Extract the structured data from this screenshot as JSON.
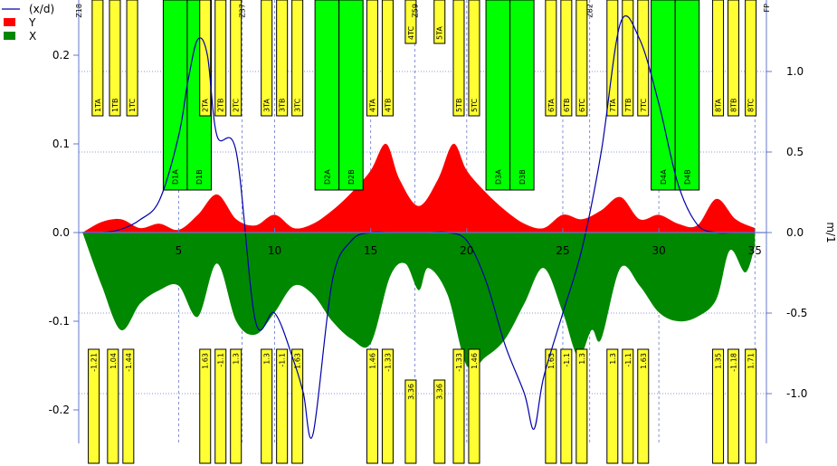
{
  "chart_data": {
    "type": "area",
    "legend": {
      "position": "top-left",
      "entries": [
        {
          "label": "(x/d)",
          "color": "#0000aa",
          "symbol": "line"
        },
        {
          "label": "Y",
          "color": "#ff0000",
          "symbol": "box"
        },
        {
          "label": "X",
          "color": "#008800",
          "symbol": "box"
        }
      ]
    },
    "x_axis": {
      "range": [
        -0.2,
        35.6
      ],
      "ticks": [
        5,
        10,
        15,
        20,
        25,
        30,
        35
      ]
    },
    "y_left": {
      "range": [
        -0.25,
        0.26
      ],
      "ticks": [
        0.2,
        0.1,
        0.0,
        -0.1,
        -0.2
      ],
      "tick_labels": [
        "0.2",
        "0.1",
        "0.0",
        "-0.1",
        "-0.2"
      ]
    },
    "y_right": {
      "label": "m/1",
      "range": [
        -1.29,
        1.38
      ],
      "ticks": [
        1.0,
        0.5,
        0.0,
        -0.5,
        -1.0
      ],
      "tick_labels": [
        "1.0",
        "0.5",
        "0.0",
        "-0.5",
        "-1.0"
      ]
    },
    "grid": "dashed",
    "series": [
      {
        "name": "Y",
        "axis": "left",
        "color": "#ff0000",
        "x": [
          0,
          1,
          2,
          3,
          4,
          5,
          6,
          7,
          8,
          9,
          10,
          11,
          12,
          13,
          14,
          15,
          15.8,
          16.5,
          17.5,
          18.5,
          19.3,
          20,
          21,
          22,
          23,
          24,
          25,
          26,
          27,
          28,
          29,
          30,
          31,
          32,
          33,
          34,
          35
        ],
        "y": [
          0.0,
          0.012,
          0.015,
          0.005,
          0.01,
          0.003,
          0.02,
          0.043,
          0.015,
          0.008,
          0.02,
          0.005,
          0.01,
          0.025,
          0.045,
          0.07,
          0.1,
          0.06,
          0.03,
          0.06,
          0.1,
          0.07,
          0.045,
          0.025,
          0.01,
          0.005,
          0.02,
          0.015,
          0.025,
          0.04,
          0.015,
          0.02,
          0.01,
          0.008,
          0.038,
          0.015,
          0.005
        ]
      },
      {
        "name": "X",
        "axis": "left",
        "color": "#008800",
        "x": [
          0,
          1,
          2,
          3,
          4,
          5,
          6,
          7,
          8,
          9,
          10,
          11,
          12,
          13,
          14,
          15,
          16,
          16.8,
          17.5,
          18,
          19,
          20,
          21,
          22,
          23,
          24,
          25,
          25.8,
          26.5,
          27,
          28,
          29,
          30,
          31,
          32,
          33,
          33.7,
          34.5,
          35
        ],
        "y": [
          0.0,
          -0.06,
          -0.11,
          -0.08,
          -0.065,
          -0.06,
          -0.095,
          -0.035,
          -0.1,
          -0.115,
          -0.09,
          -0.06,
          -0.07,
          -0.1,
          -0.12,
          -0.125,
          -0.05,
          -0.035,
          -0.065,
          -0.04,
          -0.07,
          -0.15,
          -0.14,
          -0.12,
          -0.08,
          -0.04,
          -0.09,
          -0.14,
          -0.11,
          -0.12,
          -0.04,
          -0.06,
          -0.09,
          -0.1,
          -0.095,
          -0.075,
          -0.02,
          -0.045,
          -0.015
        ]
      },
      {
        "name": "(x/d)",
        "axis": "right",
        "color": "#0000aa",
        "x": [
          0,
          1,
          2,
          3,
          4,
          5,
          5.5,
          6,
          6.5,
          7,
          8,
          9,
          10,
          11,
          11.5,
          12,
          13,
          14,
          15,
          16,
          17,
          18,
          19,
          20,
          21,
          22,
          23,
          23.5,
          24,
          25,
          26,
          27,
          28,
          29,
          30,
          31,
          32,
          33,
          34,
          35
        ],
        "y": [
          0.0,
          0.0,
          0.02,
          0.08,
          0.2,
          0.6,
          0.95,
          1.2,
          1.1,
          0.6,
          0.5,
          -0.55,
          -0.5,
          -0.8,
          -1.0,
          -1.25,
          -0.3,
          -0.05,
          0.0,
          0.0,
          0.0,
          0.0,
          0.0,
          -0.05,
          -0.3,
          -0.7,
          -1.0,
          -1.22,
          -0.9,
          -0.5,
          -0.1,
          0.5,
          1.3,
          1.2,
          0.8,
          0.3,
          0.05,
          0.0,
          0.0,
          0.0
        ]
      }
    ],
    "elements": [
      {
        "x": 4.2,
        "w": 2.5,
        "label_top": [
          "D1A",
          "D1B"
        ],
        "label_bottom": [],
        "color": "#00ff00"
      },
      {
        "x": 12.1,
        "w": 2.5,
        "label_top": [
          "D2A",
          "D2B"
        ],
        "label_bottom": [],
        "color": "#00ff00"
      },
      {
        "x": 21.0,
        "w": 2.5,
        "label_top": [
          "D3A",
          "D3B"
        ],
        "label_bottom": [],
        "color": "#00ff00"
      },
      {
        "x": 29.6,
        "w": 2.5,
        "label_top": [
          "D4A",
          "D4B"
        ],
        "label_bottom": [],
        "color": "#00ff00"
      }
    ],
    "magnets_top": [
      {
        "x": 0.5,
        "label": "1TA",
        "color": "#ffff33"
      },
      {
        "x": 1.4,
        "label": "1TB",
        "color": "#ffff33"
      },
      {
        "x": 2.3,
        "label": "1TC",
        "color": "#ffff33"
      },
      {
        "x": 6.1,
        "label": "2TA",
        "color": "#ffff33"
      },
      {
        "x": 6.9,
        "label": "2TB",
        "color": "#ffff33"
      },
      {
        "x": 7.7,
        "label": "2TC",
        "color": "#ffff33"
      },
      {
        "x": 9.3,
        "label": "3TA",
        "color": "#ffff33"
      },
      {
        "x": 10.1,
        "label": "3TB",
        "color": "#ffff33"
      },
      {
        "x": 10.9,
        "label": "3TC",
        "color": "#ffff33"
      },
      {
        "x": 14.8,
        "label": "4TA",
        "color": "#ffff33"
      },
      {
        "x": 15.6,
        "label": "4TB",
        "color": "#ffff33"
      },
      {
        "x": 16.8,
        "label": "4TC",
        "color": "#ffff33"
      },
      {
        "x": 18.3,
        "label": "5TA",
        "color": "#ffff33"
      },
      {
        "x": 19.3,
        "label": "5TB",
        "color": "#ffff33"
      },
      {
        "x": 20.1,
        "label": "5TC",
        "color": "#ffff33"
      },
      {
        "x": 24.1,
        "label": "6TA",
        "color": "#ffff33"
      },
      {
        "x": 24.9,
        "label": "6TB",
        "color": "#ffff33"
      },
      {
        "x": 25.7,
        "label": "6TC",
        "color": "#ffff33"
      },
      {
        "x": 27.3,
        "label": "7TA",
        "color": "#ffff33"
      },
      {
        "x": 28.1,
        "label": "7TB",
        "color": "#ffff33"
      },
      {
        "x": 28.9,
        "label": "7TC",
        "color": "#ffff33"
      },
      {
        "x": 32.8,
        "label": "8TA",
        "color": "#ffff33"
      },
      {
        "x": 33.6,
        "label": "8TB",
        "color": "#ffff33"
      },
      {
        "x": 34.5,
        "label": "8TC",
        "color": "#ffff33"
      }
    ],
    "magnets_bottom": [
      {
        "x": 0.3,
        "label": "-1.21",
        "color": "#ffff33"
      },
      {
        "x": 1.3,
        "label": "1.04",
        "color": "#ffff33"
      },
      {
        "x": 2.1,
        "label": "-1.44",
        "color": "#ffff33"
      },
      {
        "x": 6.1,
        "label": "1.63",
        "color": "#ffff33"
      },
      {
        "x": 6.9,
        "label": "-1.1",
        "color": "#ffff33"
      },
      {
        "x": 7.7,
        "label": "1.3",
        "color": "#ffff33"
      },
      {
        "x": 9.3,
        "label": "1.3",
        "color": "#ffff33"
      },
      {
        "x": 10.1,
        "label": "-1.1",
        "color": "#ffff33"
      },
      {
        "x": 10.9,
        "label": "1.63",
        "color": "#ffff33"
      },
      {
        "x": 14.8,
        "label": "1.46",
        "color": "#ffff33"
      },
      {
        "x": 15.6,
        "label": "-1.33",
        "color": "#ffff33"
      },
      {
        "x": 16.8,
        "label": "3.36",
        "color": "#ffff33"
      },
      {
        "x": 18.3,
        "label": "3.36",
        "color": "#ffff33"
      },
      {
        "x": 19.3,
        "label": "-1.33",
        "color": "#ffff33"
      },
      {
        "x": 20.1,
        "label": "1.46",
        "color": "#ffff33"
      },
      {
        "x": 24.1,
        "label": "1.63",
        "color": "#ffff33"
      },
      {
        "x": 24.9,
        "label": "-1.1",
        "color": "#ffff33"
      },
      {
        "x": 25.7,
        "label": "1.3",
        "color": "#ffff33"
      },
      {
        "x": 27.3,
        "label": "1.3",
        "color": "#ffff33"
      },
      {
        "x": 28.1,
        "label": "-1.1",
        "color": "#ffff33"
      },
      {
        "x": 28.9,
        "label": "1.63",
        "color": "#ffff33"
      },
      {
        "x": 32.8,
        "label": "1.35",
        "color": "#ffff33"
      },
      {
        "x": 33.6,
        "label": "-1.18",
        "color": "#ffff33"
      },
      {
        "x": 34.5,
        "label": "1.71",
        "color": "#ffff33"
      }
    ],
    "markers": [
      {
        "x": -0.2,
        "label": "Z18"
      },
      {
        "x": 8.3,
        "label": "Z37"
      },
      {
        "x": 17.3,
        "label": "Z59"
      },
      {
        "x": 26.4,
        "label": "Z82"
      },
      {
        "x": 35.6,
        "label": "FP"
      }
    ]
  }
}
